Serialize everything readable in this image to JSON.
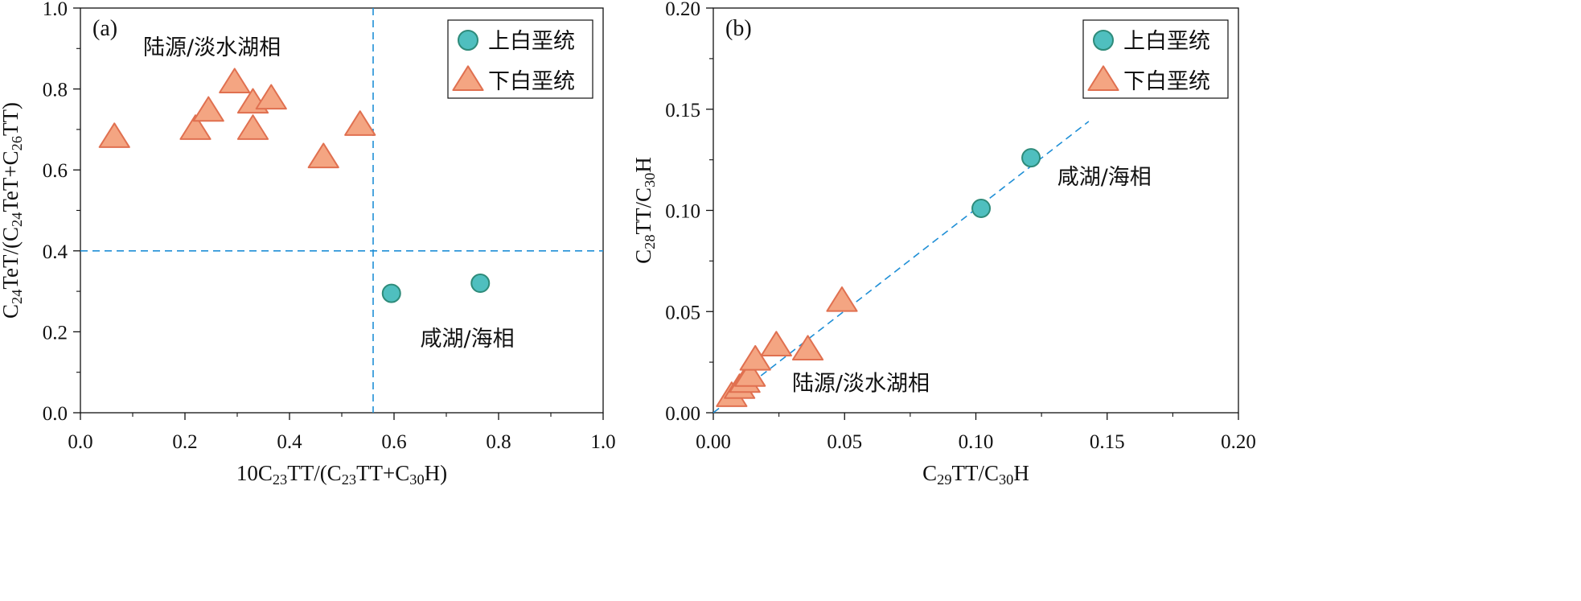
{
  "figure": {
    "background": "#ffffff"
  },
  "legend_labels": {
    "upper": "上白垩统",
    "lower": "下白垩统"
  },
  "colors": {
    "circle_fill": "#4fbfbf",
    "circle_stroke": "#2e8b7a",
    "triangle_fill": "#f4a582",
    "triangle_stroke": "#e07050",
    "guide_line": "#1f8fd6"
  },
  "chart_data": [
    {
      "type": "scatter",
      "panel_label": "(a)",
      "xlabel": {
        "prefix": "10C",
        "sub1": "23",
        "mid": "TT/(C",
        "sub2": "23",
        "mid2": "TT+C",
        "sub3": "30",
        "suffix": "H)"
      },
      "ylabel": {
        "prefix": "C",
        "sub1": "24",
        "mid": "TeT/(C",
        "sub2": "24",
        "mid2": "TeT+C",
        "sub3": "26",
        "suffix": "TT)"
      },
      "xlim": [
        0,
        1.0
      ],
      "ylim": [
        0,
        1.0
      ],
      "xticks": [
        0.0,
        0.2,
        0.4,
        0.6,
        0.8,
        1.0
      ],
      "yticks": [
        0.0,
        0.2,
        0.4,
        0.6,
        0.8,
        1.0
      ],
      "xtick_labels": [
        "0.0",
        "0.2",
        "0.4",
        "0.6",
        "0.8",
        "1.0"
      ],
      "ytick_labels": [
        "0.0",
        "0.2",
        "0.4",
        "0.6",
        "0.8",
        "1.0"
      ],
      "legend_position": "top-right",
      "guides": [
        {
          "kind": "vline",
          "x": 0.56
        },
        {
          "kind": "hline",
          "y": 0.4
        }
      ],
      "region_labels": [
        {
          "text": "陆源/淡水湖相",
          "x": 0.12,
          "y": 0.885
        },
        {
          "text": "咸湖/海相",
          "x": 0.65,
          "y": 0.165
        }
      ],
      "series": [
        {
          "name": "上白垩统",
          "marker": "circle",
          "points": [
            {
              "x": 0.595,
              "y": 0.295
            },
            {
              "x": 0.765,
              "y": 0.32
            }
          ]
        },
        {
          "name": "下白垩统",
          "marker": "triangle",
          "points": [
            {
              "x": 0.065,
              "y": 0.68
            },
            {
              "x": 0.22,
              "y": 0.7
            },
            {
              "x": 0.245,
              "y": 0.745
            },
            {
              "x": 0.295,
              "y": 0.815
            },
            {
              "x": 0.33,
              "y": 0.765
            },
            {
              "x": 0.33,
              "y": 0.7
            },
            {
              "x": 0.365,
              "y": 0.775
            },
            {
              "x": 0.465,
              "y": 0.63
            },
            {
              "x": 0.535,
              "y": 0.71
            }
          ]
        }
      ]
    },
    {
      "type": "scatter",
      "panel_label": "(b)",
      "xlabel": {
        "prefix": "C",
        "sub1": "29",
        "mid": "TT/C",
        "sub2": "30",
        "suffix": "H"
      },
      "ylabel": {
        "prefix": "C",
        "sub1": "28",
        "mid": "TT/C",
        "sub2": "30",
        "suffix": "H"
      },
      "xlim": [
        0,
        0.2
      ],
      "ylim": [
        0,
        0.2
      ],
      "xticks": [
        0.0,
        0.05,
        0.1,
        0.15,
        0.2
      ],
      "yticks": [
        0.0,
        0.05,
        0.1,
        0.15,
        0.2
      ],
      "xtick_labels": [
        "0.00",
        "0.05",
        "0.10",
        "0.15",
        "0.20"
      ],
      "ytick_labels": [
        "0.00",
        "0.05",
        "0.10",
        "0.15",
        "0.20"
      ],
      "legend_position": "top-right",
      "guides": [
        {
          "kind": "line",
          "x1": 0,
          "y1": 0,
          "x2": 0.143,
          "y2": 0.144
        }
      ],
      "region_labels": [
        {
          "text": "咸湖/海相",
          "x": 0.131,
          "y": 0.113
        },
        {
          "text": "陆源/淡水湖相",
          "x": 0.03,
          "y": 0.011
        }
      ],
      "series": [
        {
          "name": "上白垩统",
          "marker": "circle",
          "points": [
            {
              "x": 0.102,
              "y": 0.101
            },
            {
              "x": 0.121,
              "y": 0.126
            }
          ]
        },
        {
          "name": "下白垩统",
          "marker": "triangle",
          "points": [
            {
              "x": 0.007,
              "y": 0.008
            },
            {
              "x": 0.01,
              "y": 0.012
            },
            {
              "x": 0.012,
              "y": 0.015
            },
            {
              "x": 0.014,
              "y": 0.018
            },
            {
              "x": 0.016,
              "y": 0.026
            },
            {
              "x": 0.024,
              "y": 0.033
            },
            {
              "x": 0.036,
              "y": 0.031
            },
            {
              "x": 0.049,
              "y": 0.055
            }
          ]
        }
      ]
    }
  ]
}
